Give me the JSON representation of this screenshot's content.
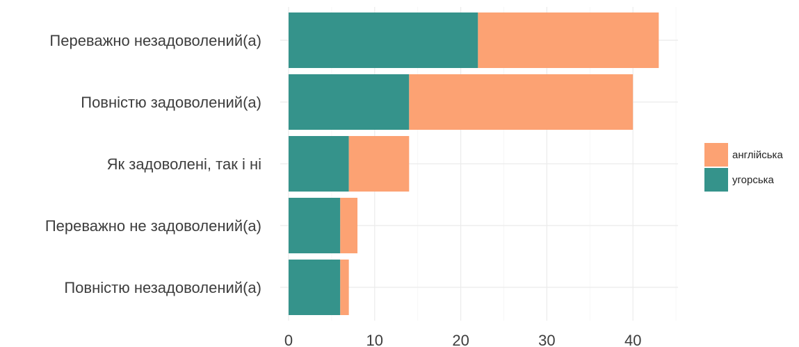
{
  "chart_data": {
    "type": "bar",
    "orientation": "horizontal",
    "stacked": true,
    "categories": [
      "Переважно незадоволений(а)",
      "Повністю задоволений(а)",
      "Як задоволені, так і ні",
      "Переважно не задоволений(а)",
      "Повністю незадоволений(а)"
    ],
    "series": [
      {
        "name": "угорська",
        "color": "#35938b",
        "values": [
          22,
          14,
          7,
          6,
          6
        ]
      },
      {
        "name": "англійська",
        "color": "#fca273",
        "values": [
          21,
          26,
          7,
          2,
          1
        ]
      }
    ],
    "legend": {
      "position": "right",
      "items": [
        "англійська",
        "угорська"
      ]
    },
    "xlim": [
      0,
      45
    ],
    "xticks": [
      0,
      10,
      20,
      30,
      40
    ],
    "xtick_labels": [
      "0",
      "10",
      "20",
      "30",
      "40"
    ],
    "grid": true,
    "title": "",
    "xlabel": "",
    "ylabel": ""
  }
}
